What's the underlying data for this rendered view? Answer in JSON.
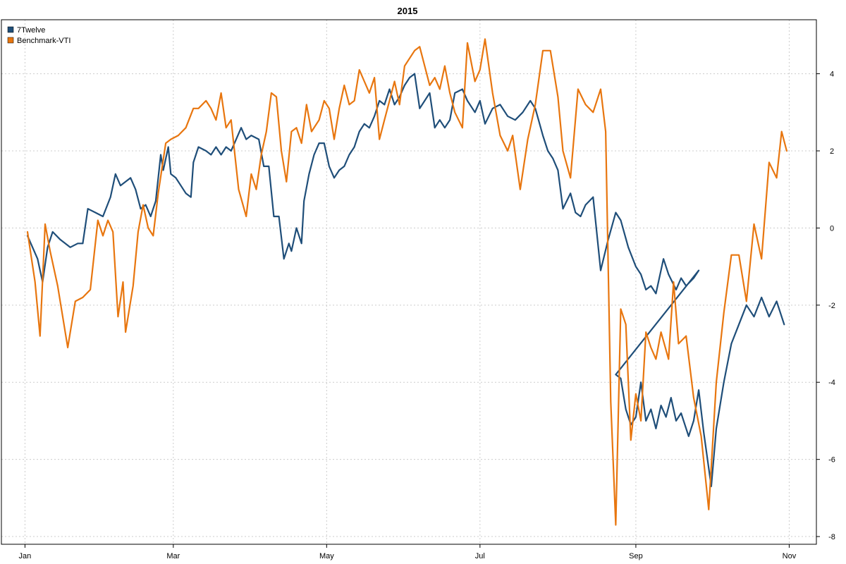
{
  "chart_data": {
    "type": "line",
    "title": "2015",
    "xlabel": "",
    "ylabel": "",
    "x_tick_labels": [
      "Jan",
      "Mar",
      "May",
      "Jul",
      "Sep",
      "Nov"
    ],
    "y_ticks": [
      4,
      2,
      0,
      -2,
      -4,
      -6,
      -8
    ],
    "ylim": [
      -8.2,
      5.4
    ],
    "xlim": [
      "2015-01-02",
      "2015-11-02"
    ],
    "grid": true,
    "legend_position": "top-left",
    "y_axis_side": "right",
    "series": [
      {
        "name": "7Twelve",
        "color": "#1f4e79",
        "points": [
          [
            "2015-01-02",
            -0.2
          ],
          [
            "2015-01-06",
            -0.8
          ],
          [
            "2015-01-08",
            -1.4
          ],
          [
            "2015-01-10",
            -0.5
          ],
          [
            "2015-01-12",
            -0.1
          ],
          [
            "2015-01-15",
            -0.3
          ],
          [
            "2015-01-19",
            -0.5
          ],
          [
            "2015-01-22",
            -0.4
          ],
          [
            "2015-01-24",
            -0.4
          ],
          [
            "2015-01-26",
            0.5
          ],
          [
            "2015-01-29",
            0.4
          ],
          [
            "2015-02-01",
            0.3
          ],
          [
            "2015-02-04",
            0.8
          ],
          [
            "2015-02-06",
            1.4
          ],
          [
            "2015-02-08",
            1.1
          ],
          [
            "2015-02-12",
            1.3
          ],
          [
            "2015-02-14",
            1.0
          ],
          [
            "2015-02-16",
            0.5
          ],
          [
            "2015-02-18",
            0.6
          ],
          [
            "2015-02-20",
            0.3
          ],
          [
            "2015-02-22",
            0.7
          ],
          [
            "2015-02-24",
            1.9
          ],
          [
            "2015-02-25",
            1.5
          ],
          [
            "2015-02-27",
            2.1
          ],
          [
            "2015-02-28",
            1.4
          ],
          [
            "2015-03-02",
            1.3
          ],
          [
            "2015-03-04",
            1.1
          ],
          [
            "2015-03-06",
            0.9
          ],
          [
            "2015-03-08",
            0.8
          ],
          [
            "2015-03-09",
            1.7
          ],
          [
            "2015-03-11",
            2.1
          ],
          [
            "2015-03-14",
            2.0
          ],
          [
            "2015-03-16",
            1.9
          ],
          [
            "2015-03-18",
            2.1
          ],
          [
            "2015-03-20",
            1.9
          ],
          [
            "2015-03-22",
            2.1
          ],
          [
            "2015-03-24",
            2.0
          ],
          [
            "2015-03-26",
            2.3
          ],
          [
            "2015-03-28",
            2.6
          ],
          [
            "2015-03-30",
            2.3
          ],
          [
            "2015-04-01",
            2.4
          ],
          [
            "2015-04-04",
            2.3
          ],
          [
            "2015-04-06",
            1.6
          ],
          [
            "2015-04-08",
            1.6
          ],
          [
            "2015-04-10",
            0.3
          ],
          [
            "2015-04-12",
            0.3
          ],
          [
            "2015-04-14",
            -0.8
          ],
          [
            "2015-04-16",
            -0.4
          ],
          [
            "2015-04-17",
            -0.6
          ],
          [
            "2015-04-19",
            0.0
          ],
          [
            "2015-04-21",
            -0.4
          ],
          [
            "2015-04-22",
            0.7
          ],
          [
            "2015-04-24",
            1.4
          ],
          [
            "2015-04-26",
            1.9
          ],
          [
            "2015-04-28",
            2.2
          ],
          [
            "2015-04-30",
            2.2
          ],
          [
            "2015-05-02",
            1.6
          ],
          [
            "2015-05-04",
            1.3
          ],
          [
            "2015-05-06",
            1.5
          ],
          [
            "2015-05-08",
            1.6
          ],
          [
            "2015-05-10",
            1.9
          ],
          [
            "2015-05-12",
            2.1
          ],
          [
            "2015-05-14",
            2.5
          ],
          [
            "2015-05-16",
            2.7
          ],
          [
            "2015-05-18",
            2.6
          ],
          [
            "2015-05-20",
            2.9
          ],
          [
            "2015-05-22",
            3.3
          ],
          [
            "2015-05-24",
            3.2
          ],
          [
            "2015-05-26",
            3.6
          ],
          [
            "2015-05-28",
            3.2
          ],
          [
            "2015-05-30",
            3.4
          ],
          [
            "2015-06-01",
            3.7
          ],
          [
            "2015-06-03",
            3.9
          ],
          [
            "2015-06-05",
            4.0
          ],
          [
            "2015-06-07",
            3.1
          ],
          [
            "2015-06-09",
            3.3
          ],
          [
            "2015-06-11",
            3.5
          ],
          [
            "2015-06-13",
            2.6
          ],
          [
            "2015-06-15",
            2.8
          ],
          [
            "2015-06-17",
            2.6
          ],
          [
            "2015-06-19",
            2.8
          ],
          [
            "2015-06-21",
            3.5
          ],
          [
            "2015-06-24",
            3.6
          ],
          [
            "2015-06-26",
            3.3
          ],
          [
            "2015-06-29",
            3.0
          ],
          [
            "2015-07-01",
            3.3
          ],
          [
            "2015-07-03",
            2.7
          ],
          [
            "2015-07-06",
            3.1
          ],
          [
            "2015-07-09",
            3.2
          ],
          [
            "2015-07-12",
            2.9
          ],
          [
            "2015-07-15",
            2.8
          ],
          [
            "2015-07-18",
            3.0
          ],
          [
            "2015-07-21",
            3.3
          ],
          [
            "2015-07-23",
            3.1
          ],
          [
            "2015-07-26",
            2.4
          ],
          [
            "2015-07-28",
            2.0
          ],
          [
            "2015-07-30",
            1.8
          ],
          [
            "2015-08-01",
            1.5
          ],
          [
            "2015-08-03",
            0.5
          ],
          [
            "2015-08-06",
            0.9
          ],
          [
            "2015-08-08",
            0.4
          ],
          [
            "2015-08-10",
            0.3
          ],
          [
            "2015-08-12",
            0.6
          ],
          [
            "2015-08-15",
            0.8
          ],
          [
            "2015-08-18",
            -1.1
          ],
          [
            "2015-08-21",
            -0.3
          ],
          [
            "2015-08-24",
            0.4
          ],
          [
            "2015-08-26",
            0.2
          ],
          [
            "2015-08-29",
            -0.5
          ],
          [
            "2015-09-01",
            -1.0
          ],
          [
            "2015-09-03",
            -1.2
          ],
          [
            "2015-09-05",
            -1.6
          ],
          [
            "2015-09-07",
            -1.5
          ],
          [
            "2015-09-09",
            -1.7
          ],
          [
            "2015-09-12",
            -0.8
          ],
          [
            "2015-09-14",
            -1.2
          ],
          [
            "2015-09-17",
            -1.6
          ],
          [
            "2015-09-19",
            -1.3
          ],
          [
            "2015-09-21",
            -1.5
          ],
          [
            "2015-09-24",
            -1.3
          ],
          [
            "2015-09-26",
            -1.1
          ],
          [
            "2015-08-24",
            -3.8
          ],
          [
            "2015-08-26",
            -3.9
          ],
          [
            "2015-08-28",
            -4.7
          ],
          [
            "2015-08-30",
            -5.1
          ],
          [
            "2015-09-01",
            -4.9
          ],
          [
            "2015-09-03",
            -4.0
          ],
          [
            "2015-09-05",
            -5.0
          ],
          [
            "2015-09-07",
            -4.7
          ],
          [
            "2015-09-09",
            -5.2
          ],
          [
            "2015-09-11",
            -4.6
          ],
          [
            "2015-09-13",
            -4.9
          ],
          [
            "2015-09-15",
            -4.4
          ],
          [
            "2015-09-17",
            -5.0
          ],
          [
            "2015-09-19",
            -4.8
          ],
          [
            "2015-09-22",
            -5.4
          ],
          [
            "2015-09-24",
            -5.0
          ],
          [
            "2015-09-26",
            -4.2
          ],
          [
            "2015-09-28",
            -5.3
          ],
          [
            "2015-10-01",
            -6.7
          ],
          [
            "2015-10-03",
            -5.2
          ],
          [
            "2015-10-06",
            -4.0
          ],
          [
            "2015-10-09",
            -3.0
          ],
          [
            "2015-10-12",
            -2.5
          ],
          [
            "2015-10-15",
            -2.0
          ],
          [
            "2015-10-18",
            -2.3
          ],
          [
            "2015-10-21",
            -1.8
          ],
          [
            "2015-10-24",
            -2.3
          ],
          [
            "2015-10-27",
            -1.9
          ],
          [
            "2015-10-30",
            -2.5
          ]
        ]
      },
      {
        "name": "Benchmark-VTI",
        "color": "#e8760f",
        "points": [
          [
            "2015-01-02",
            -0.1
          ],
          [
            "2015-01-05",
            -1.4
          ],
          [
            "2015-01-07",
            -2.8
          ],
          [
            "2015-01-09",
            0.1
          ],
          [
            "2015-01-11",
            -0.6
          ],
          [
            "2015-01-14",
            -1.5
          ],
          [
            "2015-01-18",
            -3.1
          ],
          [
            "2015-01-21",
            -1.9
          ],
          [
            "2015-01-24",
            -1.8
          ],
          [
            "2015-01-27",
            -1.6
          ],
          [
            "2015-01-30",
            0.2
          ],
          [
            "2015-02-01",
            -0.2
          ],
          [
            "2015-02-03",
            0.2
          ],
          [
            "2015-02-05",
            -0.1
          ],
          [
            "2015-02-07",
            -2.3
          ],
          [
            "2015-02-09",
            -1.4
          ],
          [
            "2015-02-10",
            -2.7
          ],
          [
            "2015-02-13",
            -1.5
          ],
          [
            "2015-02-15",
            -0.1
          ],
          [
            "2015-02-17",
            0.6
          ],
          [
            "2015-02-19",
            0.0
          ],
          [
            "2015-02-21",
            -0.2
          ],
          [
            "2015-02-23",
            0.9
          ],
          [
            "2015-02-26",
            2.2
          ],
          [
            "2015-02-28",
            2.3
          ],
          [
            "2015-03-03",
            2.4
          ],
          [
            "2015-03-06",
            2.6
          ],
          [
            "2015-03-09",
            3.1
          ],
          [
            "2015-03-11",
            3.1
          ],
          [
            "2015-03-14",
            3.3
          ],
          [
            "2015-03-16",
            3.1
          ],
          [
            "2015-03-18",
            2.8
          ],
          [
            "2015-03-20",
            3.5
          ],
          [
            "2015-03-22",
            2.6
          ],
          [
            "2015-03-24",
            2.8
          ],
          [
            "2015-03-27",
            1.0
          ],
          [
            "2015-03-30",
            0.3
          ],
          [
            "2015-04-01",
            1.4
          ],
          [
            "2015-04-03",
            1.0
          ],
          [
            "2015-04-05",
            1.9
          ],
          [
            "2015-04-07",
            2.5
          ],
          [
            "2015-04-09",
            3.5
          ],
          [
            "2015-04-11",
            3.4
          ],
          [
            "2015-04-13",
            2.0
          ],
          [
            "2015-04-15",
            1.2
          ],
          [
            "2015-04-17",
            2.5
          ],
          [
            "2015-04-19",
            2.6
          ],
          [
            "2015-04-21",
            2.2
          ],
          [
            "2015-04-23",
            3.2
          ],
          [
            "2015-04-25",
            2.5
          ],
          [
            "2015-04-28",
            2.8
          ],
          [
            "2015-04-30",
            3.3
          ],
          [
            "2015-05-02",
            3.1
          ],
          [
            "2015-05-04",
            2.3
          ],
          [
            "2015-05-06",
            3.1
          ],
          [
            "2015-05-08",
            3.7
          ],
          [
            "2015-05-10",
            3.2
          ],
          [
            "2015-05-12",
            3.3
          ],
          [
            "2015-05-14",
            4.1
          ],
          [
            "2015-05-16",
            3.8
          ],
          [
            "2015-05-18",
            3.5
          ],
          [
            "2015-05-20",
            3.9
          ],
          [
            "2015-05-22",
            2.3
          ],
          [
            "2015-05-24",
            2.8
          ],
          [
            "2015-05-26",
            3.3
          ],
          [
            "2015-05-28",
            3.8
          ],
          [
            "2015-05-30",
            3.2
          ],
          [
            "2015-06-01",
            4.2
          ],
          [
            "2015-06-03",
            4.4
          ],
          [
            "2015-06-05",
            4.6
          ],
          [
            "2015-06-07",
            4.7
          ],
          [
            "2015-06-09",
            4.2
          ],
          [
            "2015-06-11",
            3.7
          ],
          [
            "2015-06-13",
            3.9
          ],
          [
            "2015-06-15",
            3.6
          ],
          [
            "2015-06-17",
            4.2
          ],
          [
            "2015-06-19",
            3.5
          ],
          [
            "2015-06-21",
            3.0
          ],
          [
            "2015-06-24",
            2.6
          ],
          [
            "2015-06-26",
            4.8
          ],
          [
            "2015-06-29",
            3.8
          ],
          [
            "2015-07-01",
            4.1
          ],
          [
            "2015-07-03",
            4.9
          ],
          [
            "2015-07-06",
            3.5
          ],
          [
            "2015-07-09",
            2.4
          ],
          [
            "2015-07-12",
            2.0
          ],
          [
            "2015-07-14",
            2.4
          ],
          [
            "2015-07-17",
            1.0
          ],
          [
            "2015-07-20",
            2.3
          ],
          [
            "2015-07-23",
            3.2
          ],
          [
            "2015-07-26",
            4.6
          ],
          [
            "2015-07-29",
            4.6
          ],
          [
            "2015-08-01",
            3.4
          ],
          [
            "2015-08-03",
            2.0
          ],
          [
            "2015-08-06",
            1.3
          ],
          [
            "2015-08-09",
            3.6
          ],
          [
            "2015-08-12",
            3.2
          ],
          [
            "2015-08-15",
            3.0
          ],
          [
            "2015-08-18",
            3.6
          ],
          [
            "2015-08-20",
            2.5
          ],
          [
            "2015-08-22",
            -4.5
          ],
          [
            "2015-08-24",
            -7.7
          ],
          [
            "2015-08-26",
            -2.1
          ],
          [
            "2015-08-28",
            -2.5
          ],
          [
            "2015-08-30",
            -5.5
          ],
          [
            "2015-09-01",
            -4.3
          ],
          [
            "2015-09-03",
            -5.0
          ],
          [
            "2015-09-05",
            -2.7
          ],
          [
            "2015-09-07",
            -3.1
          ],
          [
            "2015-09-09",
            -3.4
          ],
          [
            "2015-09-11",
            -2.7
          ],
          [
            "2015-09-14",
            -3.4
          ],
          [
            "2015-09-16",
            -1.4
          ],
          [
            "2015-09-18",
            -3.0
          ],
          [
            "2015-09-21",
            -2.8
          ],
          [
            "2015-09-24",
            -4.4
          ],
          [
            "2015-09-27",
            -5.4
          ],
          [
            "2015-09-30",
            -7.3
          ],
          [
            "2015-10-03",
            -4.0
          ],
          [
            "2015-10-06",
            -2.2
          ],
          [
            "2015-10-09",
            -0.7
          ],
          [
            "2015-10-12",
            -0.7
          ],
          [
            "2015-10-15",
            -1.9
          ],
          [
            "2015-10-18",
            0.1
          ],
          [
            "2015-10-21",
            -0.8
          ],
          [
            "2015-10-24",
            1.7
          ],
          [
            "2015-10-27",
            1.3
          ],
          [
            "2015-10-29",
            2.5
          ],
          [
            "2015-10-31",
            2.0
          ]
        ]
      }
    ]
  }
}
